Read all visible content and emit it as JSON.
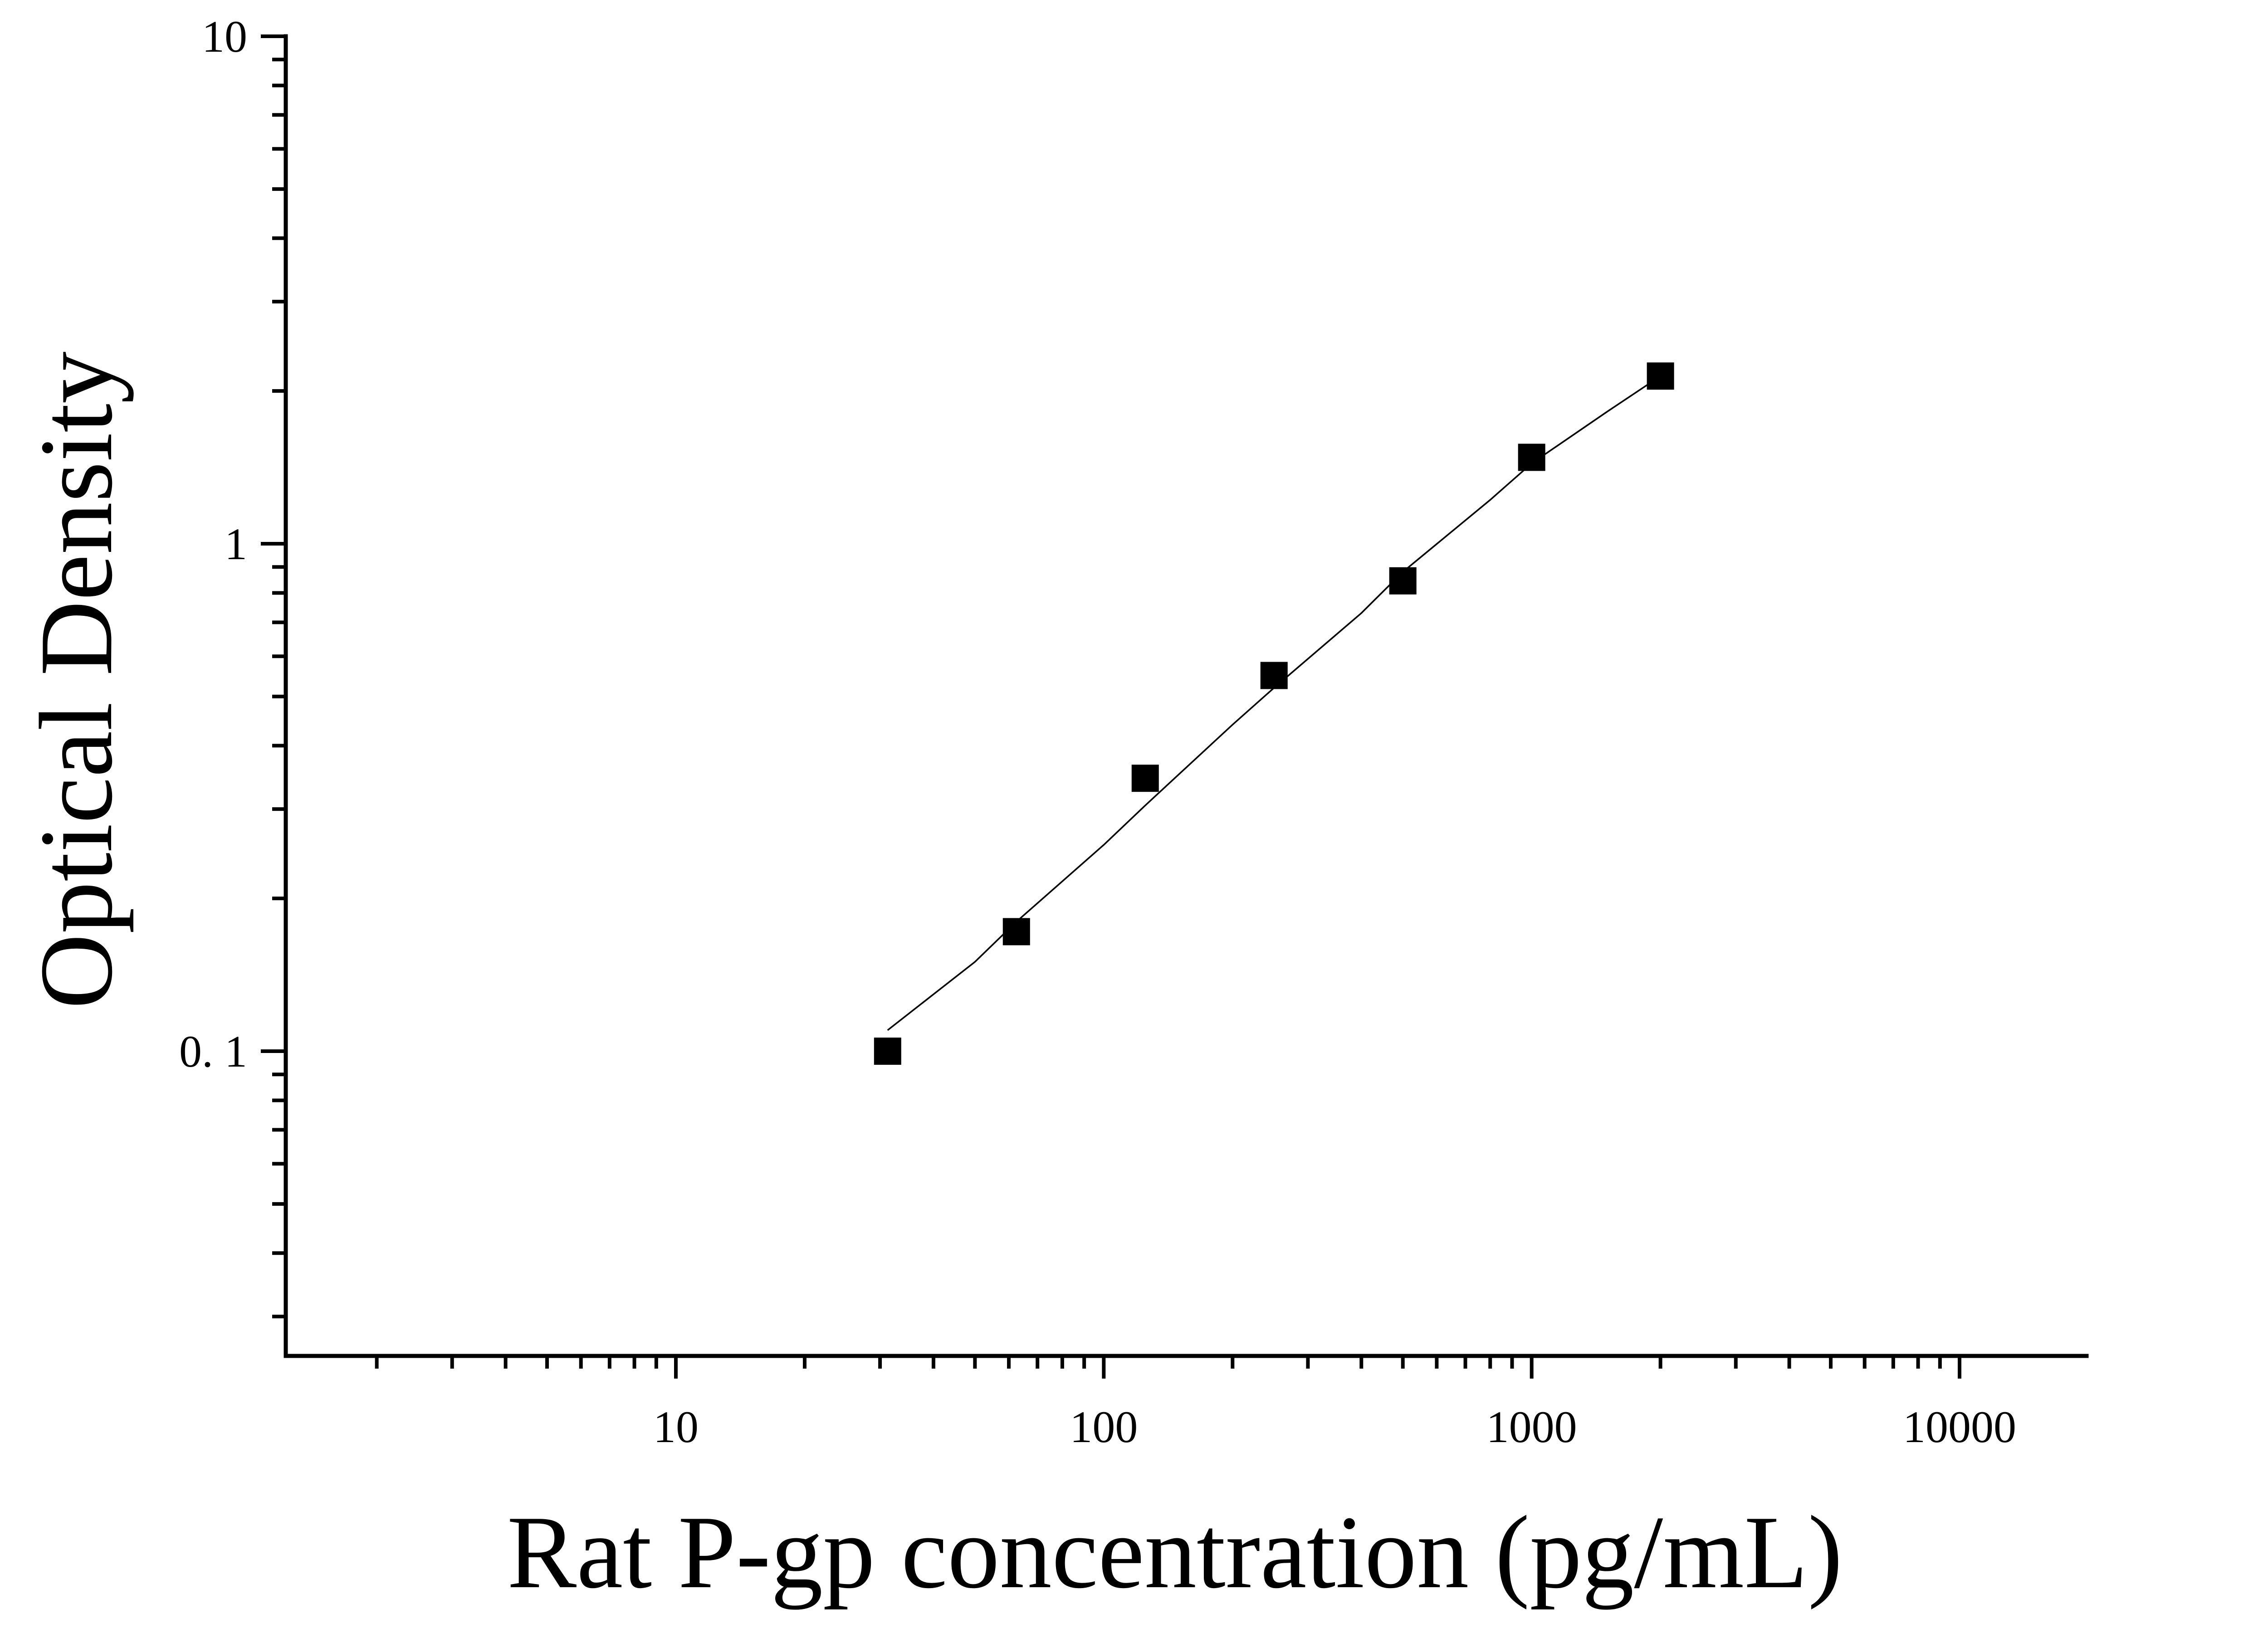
{
  "chart_data": {
    "type": "scatter",
    "title": "",
    "xlabel": "Rat P-gp concentration (pg/mL)",
    "ylabel": "Optical Density",
    "x_scale": "log",
    "y_scale": "log",
    "xlim": [
      1,
      20000
    ],
    "ylim": [
      0.025,
      10
    ],
    "x_ticks": [
      {
        "value": 10,
        "label": "10"
      },
      {
        "value": 100,
        "label": "100"
      },
      {
        "value": 1000,
        "label": "1000"
      },
      {
        "value": 10000,
        "label": "10000"
      }
    ],
    "y_ticks": [
      {
        "value": 0.1,
        "label": "0. 1"
      },
      {
        "value": 1,
        "label": "1"
      },
      {
        "value": 10,
        "label": "10"
      }
    ],
    "grid": false,
    "legend": "none",
    "series": [
      {
        "marker": "square",
        "color": "#000000",
        "x": [
          31.25,
          62.5,
          125,
          250,
          500,
          1000,
          2000
        ],
        "y": [
          0.1,
          0.172,
          0.345,
          0.55,
          0.845,
          1.48,
          2.14
        ]
      }
    ],
    "fit_curve": {
      "color": "#000000",
      "x": [
        31.25,
        50,
        62.5,
        100,
        125,
        200,
        250,
        400,
        500,
        800,
        1000,
        1500,
        2000
      ],
      "y": [
        0.11,
        0.15,
        0.18,
        0.255,
        0.305,
        0.44,
        0.52,
        0.73,
        0.88,
        1.22,
        1.44,
        1.82,
        2.14
      ]
    }
  }
}
